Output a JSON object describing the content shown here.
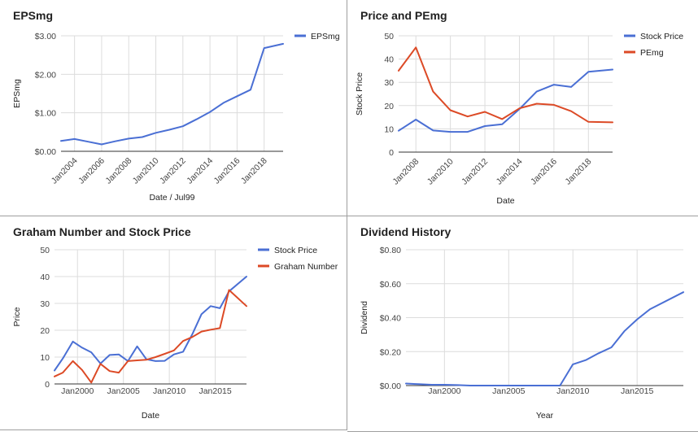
{
  "colors": {
    "blue": "#4a6fd4",
    "red": "#dc4a26",
    "grid": "#dcdcdc",
    "axis": "#333333"
  },
  "chart_data": [
    {
      "type": "line",
      "title": "EPSmg",
      "xlabel": "Date / Jul99",
      "ylabel": "EPSmg",
      "xlim": [
        2003.0,
        2019.4
      ],
      "ylim": [
        0,
        3
      ],
      "y_ticks": [
        {
          "v": 0,
          "label": "$0.00"
        },
        {
          "v": 1,
          "label": "$1.00"
        },
        {
          "v": 2,
          "label": "$2.00"
        },
        {
          "v": 3,
          "label": "$3.00"
        }
      ],
      "x_ticks": [
        {
          "v": 2004,
          "label": "Jan2004"
        },
        {
          "v": 2006,
          "label": "Jan2006"
        },
        {
          "v": 2008,
          "label": "Jan2008"
        },
        {
          "v": 2010,
          "label": "Jan2010"
        },
        {
          "v": 2012,
          "label": "Jan2012"
        },
        {
          "v": 2014,
          "label": "Jan2014"
        },
        {
          "v": 2016,
          "label": "Jan2016"
        },
        {
          "v": 2018,
          "label": "Jan2018"
        }
      ],
      "x_tick_rotation": -45,
      "grid": true,
      "legend": "right",
      "series": [
        {
          "name": "EPSmg",
          "color": "#4a6fd4",
          "x": [
            2003.0,
            2004.0,
            2005.0,
            2006.0,
            2007.0,
            2008.0,
            2009.0,
            2010.0,
            2011.0,
            2012.0,
            2013.0,
            2014.0,
            2015.0,
            2016.0,
            2017.0,
            2018.0,
            2019.4
          ],
          "y": [
            0.27,
            0.32,
            0.25,
            0.18,
            0.26,
            0.33,
            0.37,
            0.48,
            0.56,
            0.65,
            0.83,
            1.02,
            1.26,
            1.43,
            1.6,
            2.68,
            2.79
          ]
        }
      ]
    },
    {
      "type": "line",
      "title": "Price and PEmg",
      "xlabel": "Date",
      "ylabel": "Stock Price",
      "xlim": [
        2007.0,
        2019.4
      ],
      "ylim": [
        0,
        50
      ],
      "y_ticks": [
        {
          "v": 0,
          "label": "0"
        },
        {
          "v": 10,
          "label": "10"
        },
        {
          "v": 20,
          "label": "20"
        },
        {
          "v": 30,
          "label": "30"
        },
        {
          "v": 40,
          "label": "40"
        },
        {
          "v": 50,
          "label": "50"
        }
      ],
      "x_ticks": [
        {
          "v": 2008,
          "label": "Jan2008"
        },
        {
          "v": 2010,
          "label": "Jan2010"
        },
        {
          "v": 2012,
          "label": "Jan2012"
        },
        {
          "v": 2014,
          "label": "Jan2014"
        },
        {
          "v": 2016,
          "label": "Jan2016"
        },
        {
          "v": 2018,
          "label": "Jan2018"
        }
      ],
      "x_tick_rotation": -45,
      "grid": true,
      "legend": "right",
      "series": [
        {
          "name": "Stock Price",
          "color": "#4a6fd4",
          "x": [
            2007.0,
            2008.0,
            2009.0,
            2010.0,
            2011.0,
            2012.0,
            2013.0,
            2014.0,
            2015.0,
            2016.0,
            2017.0,
            2018.0,
            2019.4
          ],
          "y": [
            9.2,
            14.0,
            9.3,
            8.7,
            8.7,
            11.2,
            12.0,
            18.5,
            26.0,
            29.0,
            28.0,
            34.5,
            35.5
          ]
        },
        {
          "name": "PEmg",
          "color": "#dc4a26",
          "x": [
            2007.0,
            2008.0,
            2009.0,
            2010.0,
            2011.0,
            2012.0,
            2013.0,
            2014.0,
            2015.0,
            2016.0,
            2017.0,
            2018.0,
            2019.4
          ],
          "y": [
            35.0,
            45.0,
            26.0,
            18.0,
            15.3,
            17.3,
            14.2,
            18.8,
            20.8,
            20.3,
            17.6,
            13.0,
            12.8
          ]
        }
      ]
    },
    {
      "type": "line",
      "title": "Graham Number and Stock Price",
      "xlabel": "Date",
      "ylabel": "Price",
      "xlim": [
        1997.5,
        2018.4
      ],
      "ylim": [
        0,
        50
      ],
      "y_ticks": [
        {
          "v": 0,
          "label": "0"
        },
        {
          "v": 10,
          "label": "10"
        },
        {
          "v": 20,
          "label": "20"
        },
        {
          "v": 30,
          "label": "30"
        },
        {
          "v": 40,
          "label": "40"
        },
        {
          "v": 50,
          "label": "50"
        }
      ],
      "x_ticks": [
        {
          "v": 2000,
          "label": "Jan2000"
        },
        {
          "v": 2005,
          "label": "Jan2005"
        },
        {
          "v": 2010,
          "label": "Jan2010"
        },
        {
          "v": 2015,
          "label": "Jan2015"
        }
      ],
      "x_tick_rotation": 0,
      "grid": true,
      "legend": "right",
      "series": [
        {
          "name": "Stock Price",
          "color": "#4a6fd4",
          "x": [
            1997.5,
            1998.4,
            1999.5,
            2000.5,
            2001.5,
            2002.5,
            2003.5,
            2004.5,
            2005.5,
            2006.5,
            2007.5,
            2008.5,
            2009.5,
            2010.5,
            2011.5,
            2012.5,
            2013.5,
            2014.5,
            2015.5,
            2016.5,
            2018.4
          ],
          "y": [
            5.0,
            9.5,
            15.8,
            13.5,
            11.8,
            7.6,
            10.8,
            11.0,
            8.5,
            14.0,
            9.2,
            8.5,
            8.6,
            11.0,
            12.0,
            18.5,
            26.0,
            29.0,
            28.2,
            34.5,
            40.0
          ]
        },
        {
          "name": "Graham Number",
          "color": "#dc4a26",
          "x": [
            1997.5,
            1998.4,
            1999.5,
            2000.5,
            2001.5,
            2002.5,
            2003.5,
            2004.5,
            2005.5,
            2006.5,
            2007.5,
            2008.5,
            2009.5,
            2010.5,
            2011.5,
            2012.5,
            2013.5,
            2014.5,
            2015.5,
            2016.5,
            2018.4
          ],
          "y": [
            2.8,
            4.2,
            8.5,
            5.2,
            0.5,
            7.5,
            4.8,
            4.2,
            8.5,
            8.8,
            9.0,
            10.0,
            11.2,
            12.5,
            16.0,
            17.5,
            19.5,
            20.2,
            20.8,
            35.0,
            29.0
          ]
        }
      ]
    },
    {
      "type": "line",
      "title": "Dividend History",
      "xlabel": "Year",
      "ylabel": "Dividend",
      "xlim": [
        1997.0,
        2018.6
      ],
      "ylim": [
        0,
        0.8
      ],
      "y_ticks": [
        {
          "v": 0,
          "label": "$0.00"
        },
        {
          "v": 0.2,
          "label": "$0.20"
        },
        {
          "v": 0.4,
          "label": "$0.40"
        },
        {
          "v": 0.6,
          "label": "$0.60"
        },
        {
          "v": 0.8,
          "label": "$0.80"
        }
      ],
      "x_ticks": [
        {
          "v": 2000,
          "label": "Jan2000"
        },
        {
          "v": 2005,
          "label": "Jan2005"
        },
        {
          "v": 2010,
          "label": "Jan2010"
        },
        {
          "v": 2015,
          "label": "Jan2015"
        }
      ],
      "x_tick_rotation": 0,
      "grid": true,
      "legend": "none",
      "series": [
        {
          "name": "Dividend",
          "color": "#4a6fd4",
          "x": [
            1997.0,
            1998.0,
            1999.0,
            2000.0,
            2001.0,
            2002.0,
            2003.0,
            2005.0,
            2007.0,
            2008.0,
            2009.0,
            2010.0,
            2011.0,
            2012.0,
            2013.0,
            2014.0,
            2015.0,
            2016.0,
            2018.6
          ],
          "y": [
            0.012,
            0.008,
            0.005,
            0.005,
            0.003,
            0.0,
            0.0,
            0.0,
            0.0,
            0.0,
            0.0,
            0.125,
            0.15,
            0.19,
            0.225,
            0.32,
            0.39,
            0.45,
            0.55
          ]
        }
      ]
    }
  ]
}
